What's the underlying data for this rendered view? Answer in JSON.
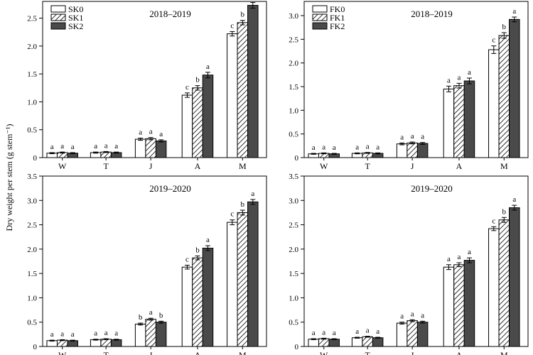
{
  "figure": {
    "ylabel": "Dry weight per stem (g stem⁻¹)"
  },
  "chart_data": [
    {
      "type": "bar",
      "title": "2018–2019",
      "categories": [
        "W",
        "T",
        "J",
        "A",
        "M"
      ],
      "ylim": [
        0,
        2.8
      ],
      "yticks": [
        0,
        0.5,
        1.0,
        1.5,
        2.0,
        2.5
      ],
      "ytick_labels": [
        "0",
        "0.5",
        "1.0",
        "1.5",
        "2.0",
        "2.5"
      ],
      "legend_position": "top-left",
      "series": [
        {
          "name": "SK0",
          "pattern": "white",
          "values": [
            0.08,
            0.09,
            0.33,
            1.12,
            2.22
          ],
          "errors": [
            0.01,
            0.01,
            0.02,
            0.04,
            0.04
          ],
          "sig": [
            "a",
            "a",
            "a",
            "c",
            "c"
          ]
        },
        {
          "name": "SK1",
          "pattern": "hatch",
          "values": [
            0.09,
            0.1,
            0.34,
            1.25,
            2.42
          ],
          "errors": [
            0.01,
            0.01,
            0.02,
            0.04,
            0.04
          ],
          "sig": [
            "a",
            "a",
            "a",
            "b",
            "b"
          ]
        },
        {
          "name": "SK2",
          "pattern": "dark",
          "values": [
            0.08,
            0.09,
            0.3,
            1.48,
            2.73
          ],
          "errors": [
            0.01,
            0.01,
            0.02,
            0.05,
            0.05
          ],
          "sig": [
            "a",
            "a",
            "a",
            "a",
            "a"
          ]
        }
      ]
    },
    {
      "type": "bar",
      "title": "2018–2019",
      "categories": [
        "W",
        "T",
        "J",
        "A",
        "M"
      ],
      "ylim": [
        0,
        3.3
      ],
      "yticks": [
        0,
        0.5,
        1.0,
        1.5,
        2.0,
        2.5,
        3.0
      ],
      "ytick_labels": [
        "0",
        "0.5",
        "1.0",
        "1.5",
        "2.0",
        "2.5",
        "3.0"
      ],
      "legend_position": "top-left",
      "series": [
        {
          "name": "FK0",
          "pattern": "white",
          "values": [
            0.08,
            0.09,
            0.29,
            1.45,
            2.28
          ],
          "errors": [
            0.01,
            0.01,
            0.02,
            0.06,
            0.08
          ],
          "sig": [
            "a",
            "a",
            "a",
            "a",
            "c"
          ]
        },
        {
          "name": "FK1",
          "pattern": "hatch",
          "values": [
            0.09,
            0.1,
            0.31,
            1.52,
            2.58
          ],
          "errors": [
            0.01,
            0.01,
            0.02,
            0.05,
            0.06
          ],
          "sig": [
            "a",
            "a",
            "a",
            "a",
            "b"
          ]
        },
        {
          "name": "FK2",
          "pattern": "dark",
          "values": [
            0.08,
            0.09,
            0.3,
            1.62,
            2.92
          ],
          "errors": [
            0.01,
            0.01,
            0.02,
            0.06,
            0.05
          ],
          "sig": [
            "a",
            "a",
            "a",
            "a",
            "a"
          ]
        }
      ]
    },
    {
      "type": "bar",
      "title": "2019–2020",
      "categories": [
        "W",
        "T",
        "J",
        "A",
        "M"
      ],
      "ylim": [
        0,
        3.5
      ],
      "yticks": [
        0,
        0.5,
        1.0,
        1.5,
        2.0,
        2.5,
        3.0,
        3.5
      ],
      "ytick_labels": [
        "0",
        "0.5",
        "1.0",
        "1.5",
        "2.0",
        "2.5",
        "3.0",
        "3.5"
      ],
      "series": [
        {
          "name": "SK0",
          "pattern": "white",
          "values": [
            0.12,
            0.14,
            0.46,
            1.63,
            2.55
          ],
          "errors": [
            0.01,
            0.01,
            0.02,
            0.04,
            0.05
          ],
          "sig": [
            "a",
            "a",
            "b",
            "c",
            "c"
          ]
        },
        {
          "name": "SK1",
          "pattern": "hatch",
          "values": [
            0.13,
            0.15,
            0.56,
            1.82,
            2.75
          ],
          "errors": [
            0.01,
            0.01,
            0.02,
            0.04,
            0.05
          ],
          "sig": [
            "a",
            "a",
            "a",
            "b",
            "b"
          ]
        },
        {
          "name": "SK2",
          "pattern": "dark",
          "values": [
            0.12,
            0.14,
            0.5,
            2.02,
            2.97
          ],
          "errors": [
            0.01,
            0.01,
            0.02,
            0.05,
            0.05
          ],
          "sig": [
            "a",
            "a",
            "b",
            "a",
            "a"
          ]
        }
      ]
    },
    {
      "type": "bar",
      "title": "2019–2020",
      "categories": [
        "W",
        "T",
        "J",
        "A",
        "M"
      ],
      "ylim": [
        0,
        3.5
      ],
      "yticks": [
        0,
        0.5,
        1.0,
        1.5,
        2.0,
        2.5,
        3.0,
        3.5
      ],
      "ytick_labels": [
        "0",
        "0.5",
        "1.0",
        "1.5",
        "2.0",
        "2.5",
        "3.0",
        "3.5"
      ],
      "series": [
        {
          "name": "FK0",
          "pattern": "white",
          "values": [
            0.15,
            0.18,
            0.48,
            1.63,
            2.42
          ],
          "errors": [
            0.01,
            0.01,
            0.02,
            0.05,
            0.04
          ],
          "sig": [
            "a",
            "a",
            "a",
            "a",
            "c"
          ]
        },
        {
          "name": "FK1",
          "pattern": "hatch",
          "values": [
            0.16,
            0.2,
            0.53,
            1.68,
            2.6
          ],
          "errors": [
            0.01,
            0.01,
            0.02,
            0.04,
            0.05
          ],
          "sig": [
            "a",
            "a",
            "a",
            "a",
            "b"
          ]
        },
        {
          "name": "FK2",
          "pattern": "dark",
          "values": [
            0.15,
            0.18,
            0.5,
            1.77,
            2.85
          ],
          "errors": [
            0.01,
            0.01,
            0.02,
            0.05,
            0.05
          ],
          "sig": [
            "a",
            "a",
            "a",
            "a",
            "a"
          ]
        }
      ]
    }
  ]
}
